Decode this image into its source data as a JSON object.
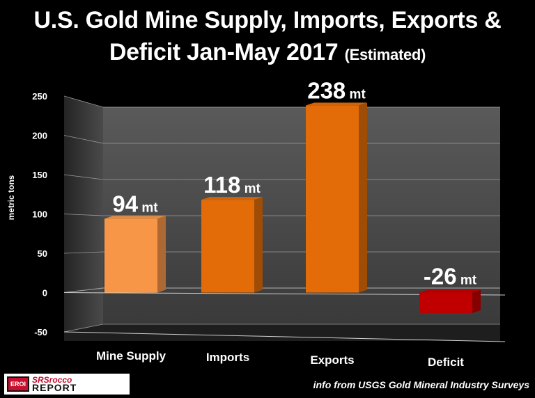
{
  "title": {
    "main": "U.S. Gold Mine Supply, Imports, Exports &",
    "line2": "Deficit Jan-May 2017",
    "sub": "(Estimated)"
  },
  "chart_data": {
    "type": "bar",
    "categories": [
      "Mine Supply",
      "Imports",
      "Exports",
      "Deficit"
    ],
    "values": [
      94,
      118,
      238,
      -26
    ],
    "data_labels": [
      {
        "num": "94",
        "unit": "mt"
      },
      {
        "num": "118",
        "unit": "mt"
      },
      {
        "num": "238",
        "unit": "mt"
      },
      {
        "num": "-26",
        "unit": "mt"
      }
    ],
    "ylabel": "metric tons",
    "ylim": [
      -50,
      250
    ],
    "yticks": [
      -50,
      0,
      50,
      100,
      150,
      200,
      250
    ],
    "grid": true,
    "colors": [
      "#f79646",
      "#e36c09",
      "#e36c09",
      "#c00000"
    ]
  },
  "logo": {
    "badge": "EROI",
    "line1": "SRSrocco",
    "line2": "REPORT"
  },
  "source": "info from USGS Gold Mineral Industry Surveys"
}
